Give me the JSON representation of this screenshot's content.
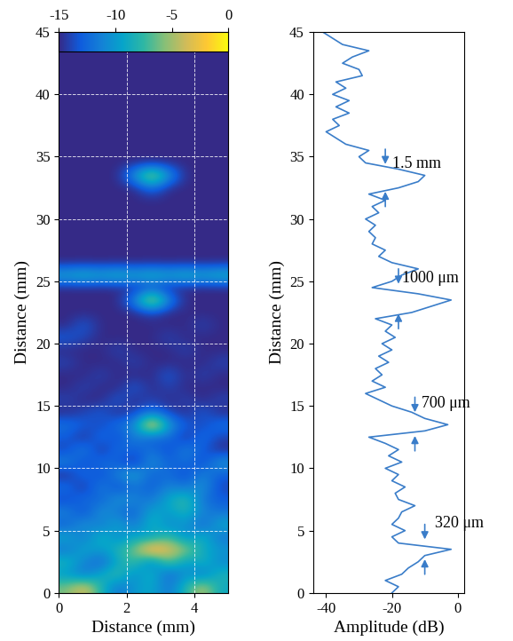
{
  "chart_data": [
    {
      "type": "heatmap",
      "x_label": "Distance (mm)",
      "y_label": "Distance (mm)",
      "xlim": [
        0,
        5
      ],
      "ylim": [
        0,
        45
      ],
      "xticks": [
        0,
        2,
        4
      ],
      "yticks": [
        0,
        5,
        10,
        15,
        20,
        25,
        30,
        35,
        40,
        45
      ],
      "grid": true,
      "colorbar": {
        "range": [
          -15,
          0
        ],
        "ticks": [
          -15,
          -10,
          -5,
          0
        ]
      },
      "cells": [
        [
          -6,
          -3,
          -8,
          -12,
          -10,
          -9,
          -12,
          -8,
          -4,
          -9
        ],
        [
          -10,
          -12,
          -9,
          -7,
          -11,
          -8,
          -13,
          -10,
          -12,
          -8
        ],
        [
          -8,
          -11,
          -13,
          -9,
          -7,
          -12,
          -6,
          -10,
          -8,
          -11
        ],
        [
          -12,
          -9,
          -10,
          -8,
          -6,
          0,
          -3,
          -5,
          -9,
          -10
        ],
        [
          -9,
          -12,
          -8,
          -11,
          -9,
          -10,
          -7,
          -11,
          -8,
          -12
        ],
        [
          -13,
          -10,
          -12,
          -9,
          -12,
          -8,
          -11,
          -10,
          -13,
          -9
        ],
        [
          -11,
          -14,
          -10,
          -12,
          -13,
          -9,
          -10,
          -8,
          -11,
          -12
        ],
        [
          -14,
          -12,
          -13,
          -10,
          -11,
          -12,
          -9,
          -7,
          -12,
          -13
        ],
        [
          -12,
          -15,
          -11,
          -14,
          -12,
          -13,
          -11,
          -12,
          -10,
          -14
        ],
        [
          -15,
          -12,
          -14,
          -11,
          -9,
          -13,
          -12,
          -14,
          -11,
          -13
        ],
        [
          -11,
          -14,
          -12,
          -13,
          -15,
          -10,
          -13,
          -12,
          -14,
          -10
        ],
        [
          -14,
          -11,
          -15,
          -12,
          -13,
          -12,
          -14,
          -11,
          -13,
          -15
        ],
        [
          -13,
          -15,
          -12,
          -14,
          -11,
          -13,
          -12,
          -15,
          -12,
          -14
        ],
        [
          -12,
          -13,
          -14,
          -12,
          -11,
          0,
          -10,
          -13,
          -14,
          -12
        ],
        [
          -15,
          -14,
          -13,
          -15,
          -14,
          -12,
          -14,
          -15,
          -13,
          -15
        ],
        [
          -14,
          -15,
          -15,
          -13,
          -15,
          -14,
          -15,
          -14,
          -15,
          -14
        ],
        [
          -15,
          -14,
          -15,
          -15,
          -13,
          -15,
          -14,
          -15,
          -15,
          -15
        ],
        [
          -15,
          -15,
          -14,
          -15,
          -15,
          -15,
          -13,
          -15,
          -14,
          -15
        ],
        [
          -14,
          -15,
          -15,
          -15,
          -14,
          -15,
          -15,
          -15,
          -15,
          -14
        ],
        [
          -15,
          -15,
          -15,
          -14,
          -15,
          -15,
          -15,
          -14,
          -15,
          -15
        ],
        [
          -13,
          -14,
          -15,
          -15,
          -15,
          -15,
          -14,
          -15,
          -15,
          -15
        ],
        [
          -15,
          -13,
          -15,
          -15,
          -15,
          -15,
          -15,
          -15,
          -14,
          -15
        ],
        [
          -15,
          -15,
          -15,
          -15,
          -15,
          -14,
          -15,
          -15,
          -15,
          -15
        ],
        [
          -15,
          -15,
          -15,
          -15,
          -11,
          -2,
          -11,
          -15,
          -15,
          -15
        ],
        [
          -15,
          -15,
          -15,
          -15,
          -15,
          -14,
          -15,
          -15,
          -15,
          -15
        ],
        [
          -9,
          -8,
          -9,
          -8,
          -9,
          -8,
          -9,
          -8,
          -9,
          -8
        ],
        [
          -15,
          -15,
          -15,
          -15,
          -15,
          -15,
          -15,
          -15,
          -15,
          -15
        ],
        [
          -15,
          -15,
          -15,
          -15,
          -15,
          -15,
          -15,
          -15,
          -15,
          -15
        ],
        [
          -15,
          -15,
          -15,
          -15,
          -15,
          -15,
          -15,
          -15,
          -15,
          -15
        ],
        [
          -15,
          -15,
          -15,
          -15,
          -15,
          -15,
          -15,
          -15,
          -15,
          -15
        ],
        [
          -15,
          -15,
          -15,
          -15,
          -15,
          -15,
          -15,
          -15,
          -15,
          -15
        ],
        [
          -15,
          -15,
          -15,
          -15,
          -15,
          -15,
          -15,
          -15,
          -15,
          -15
        ],
        [
          -15,
          -15,
          -15,
          -15,
          -15,
          -12,
          -15,
          -15,
          -15,
          -15
        ],
        [
          -15,
          -15,
          -15,
          -15,
          -10,
          -3,
          -10,
          -15,
          -15,
          -15
        ],
        [
          -15,
          -15,
          -15,
          -15,
          -15,
          -15,
          -15,
          -15,
          -15,
          -15
        ],
        [
          -15,
          -15,
          -15,
          -15,
          -15,
          -15,
          -15,
          -15,
          -15,
          -15
        ],
        [
          -15,
          -15,
          -15,
          -15,
          -15,
          -15,
          -15,
          -15,
          -15,
          -15
        ],
        [
          -15,
          -15,
          -15,
          -15,
          -15,
          -15,
          -15,
          -15,
          -15,
          -15
        ],
        [
          -15,
          -15,
          -15,
          -15,
          -15,
          -15,
          -15,
          -15,
          -15,
          -15
        ],
        [
          -15,
          -15,
          -15,
          -15,
          -15,
          -15,
          -15,
          -15,
          -15,
          -15
        ],
        [
          -15,
          -15,
          -15,
          -15,
          -15,
          -15,
          -15,
          -15,
          -15,
          -15
        ],
        [
          -15,
          -15,
          -15,
          -15,
          -15,
          -15,
          -15,
          -15,
          -15,
          -15
        ],
        [
          -15,
          -15,
          -15,
          -15,
          -15,
          -15,
          -15,
          -15,
          -15,
          -15
        ],
        [
          -15,
          -15,
          -15,
          -15,
          -15,
          -15,
          -15,
          -15,
          -15,
          -15
        ],
        [
          -15,
          -15,
          -15,
          -15,
          -15,
          -15,
          -15,
          -15,
          -15,
          -15
        ]
      ]
    },
    {
      "type": "line",
      "x_label": "Amplitude (dB)",
      "y_label": "Distance (mm)",
      "xlim": [
        -44,
        2
      ],
      "ylim": [
        0,
        45
      ],
      "xticks": [
        -40,
        -20,
        0
      ],
      "yticks": [
        0,
        5,
        10,
        15,
        20,
        25,
        30,
        35,
        40,
        45
      ],
      "color": "#3a7dc9",
      "y": [
        0,
        0.5,
        1,
        1.5,
        2,
        2.5,
        3,
        3.5,
        4,
        4.5,
        5,
        5.5,
        6,
        6.5,
        7,
        7.5,
        8,
        8.5,
        9,
        9.5,
        10,
        10.5,
        11,
        11.5,
        12,
        12.5,
        13,
        13.5,
        14,
        14.5,
        15,
        15.5,
        16,
        16.5,
        17,
        17.5,
        18,
        18.5,
        19,
        19.5,
        20,
        20.5,
        21,
        21.5,
        22,
        22.5,
        23,
        23.5,
        24,
        24.5,
        25,
        25.5,
        26,
        26.5,
        27,
        27.5,
        28,
        28.5,
        29,
        29.5,
        30,
        30.5,
        31,
        31.5,
        32,
        32.5,
        33,
        33.5,
        34,
        34.5,
        35,
        35.5,
        36,
        36.5,
        37,
        37.5,
        38,
        38.5,
        39,
        39.5,
        40,
        40.5,
        41,
        41.5,
        42,
        42.5,
        43,
        43.5,
        44,
        44.5,
        45
      ],
      "x": [
        -20,
        -18,
        -22,
        -17,
        -15,
        -12,
        -10,
        -2,
        -18,
        -20,
        -16,
        -20,
        -18,
        -17,
        -13,
        -18,
        -19,
        -16,
        -20,
        -18,
        -22,
        -17,
        -21,
        -18,
        -22,
        -27,
        -10,
        -3,
        -10,
        -14,
        -20,
        -24,
        -28,
        -22,
        -26,
        -23,
        -25,
        -21,
        -24,
        -20,
        -23,
        -19,
        -22,
        -20,
        -25,
        -14,
        -8,
        -2,
        -12,
        -26,
        -20,
        -17,
        -12,
        -20,
        -24,
        -22,
        -26,
        -25,
        -27,
        -25,
        -28,
        -24,
        -26,
        -22,
        -27,
        -18,
        -12,
        -10,
        -18,
        -28,
        -30,
        -27,
        -34,
        -37,
        -40,
        -36,
        -38,
        -33,
        -37,
        -33,
        -38,
        -34,
        -37,
        -29,
        -30,
        -35,
        -32,
        -27,
        -35,
        -38,
        -41
      ],
      "annotations": [
        {
          "text": "1.5 mm",
          "x": -20,
          "y": 33.8,
          "arrow_x": -22,
          "arrows_y": [
            34.2,
            32.4
          ]
        },
        {
          "text": "1000 μm",
          "x": -17,
          "y": 24.6,
          "arrow_x": -18,
          "arrows_y": [
            24.6,
            22.6
          ]
        },
        {
          "text": "700 μm",
          "x": -11,
          "y": 14.6,
          "arrow_x": -13,
          "arrows_y": [
            14.3,
            12.8
          ]
        },
        {
          "text": "320 μm",
          "x": -7,
          "y": 5.0,
          "arrow_x": -10,
          "arrows_y": [
            4.1,
            2.9
          ]
        }
      ]
    }
  ]
}
